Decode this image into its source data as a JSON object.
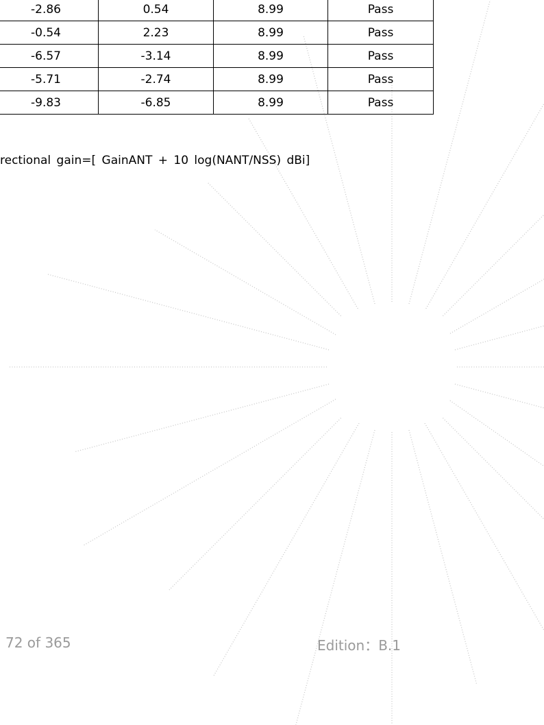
{
  "table": {
    "rows": [
      [
        "-2.86",
        "0.54",
        "8.99",
        "Pass"
      ],
      [
        "-0.54",
        "2.23",
        "8.99",
        "Pass"
      ],
      [
        "-6.57",
        "-3.14",
        "8.99",
        "Pass"
      ],
      [
        "-5.71",
        "-2.74",
        "8.99",
        "Pass"
      ],
      [
        "-9.83",
        "-6.85",
        "8.99",
        "Pass"
      ]
    ]
  },
  "note": "rectional gain=[ GainANT + 10 log(NANT/NSS) dBi]",
  "footer": {
    "page": "72 of 365",
    "edition": "Edition：B.1"
  }
}
